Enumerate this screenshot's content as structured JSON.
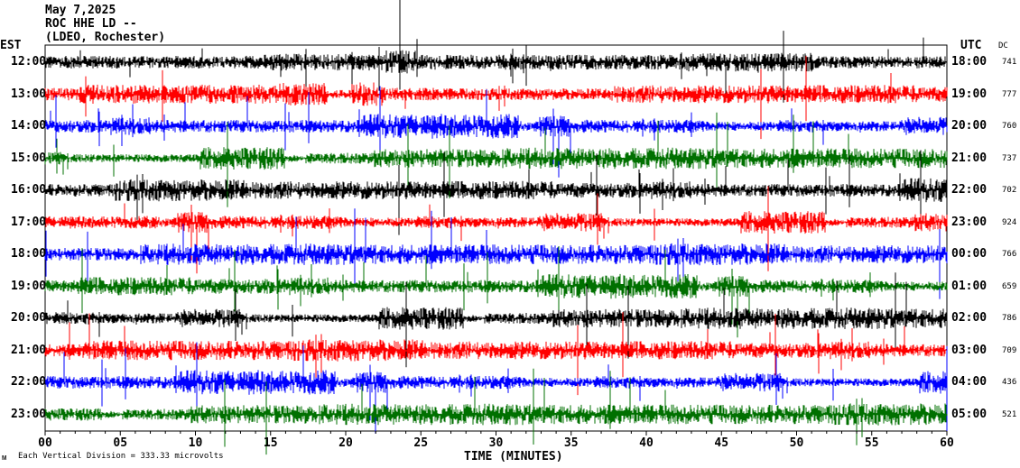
{
  "header": {
    "date": "May 7,2025",
    "station": "ROC HHE LD --",
    "network": "(LDEO, Rochester)"
  },
  "colors": {
    "black": "#000000",
    "red": "#ff0000",
    "blue": "#0000ff",
    "green": "#007000"
  },
  "chart_data": {
    "type": "line",
    "title": "ROC HHE LD -- helicorder, May 7,2025",
    "xlabel": "TIME (MINUTES)",
    "xlim": [
      0,
      60
    ],
    "x_ticks": [
      "00",
      "05",
      "10",
      "15",
      "20",
      "25",
      "30",
      "35",
      "40",
      "45",
      "50",
      "55",
      "60"
    ],
    "left_axis_label": "EST",
    "right_axis_label": "UTC",
    "dc_label": "DC",
    "scale_note": "Each Vertical Division =  333.33 microvolts",
    "traces": [
      {
        "est": "12:00",
        "utc": "18:00",
        "dc": "741",
        "color": "#000000"
      },
      {
        "est": "13:00",
        "utc": "19:00",
        "dc": "777",
        "color": "#ff0000"
      },
      {
        "est": "14:00",
        "utc": "20:00",
        "dc": "760",
        "color": "#0000ff"
      },
      {
        "est": "15:00",
        "utc": "21:00",
        "dc": "737",
        "color": "#007000"
      },
      {
        "est": "16:00",
        "utc": "22:00",
        "dc": "702",
        "color": "#000000"
      },
      {
        "est": "17:00",
        "utc": "23:00",
        "dc": "924",
        "color": "#ff0000"
      },
      {
        "est": "18:00",
        "utc": "00:00",
        "dc": "766",
        "color": "#0000ff"
      },
      {
        "est": "19:00",
        "utc": "01:00",
        "dc": "659",
        "color": "#007000"
      },
      {
        "est": "20:00",
        "utc": "02:00",
        "dc": "786",
        "color": "#000000"
      },
      {
        "est": "21:00",
        "utc": "03:00",
        "dc": "709",
        "color": "#ff0000"
      },
      {
        "est": "22:00",
        "utc": "04:00",
        "dc": "436",
        "color": "#0000ff"
      },
      {
        "est": "23:00",
        "utc": "05:00",
        "dc": "521",
        "color": "#007000"
      }
    ]
  }
}
